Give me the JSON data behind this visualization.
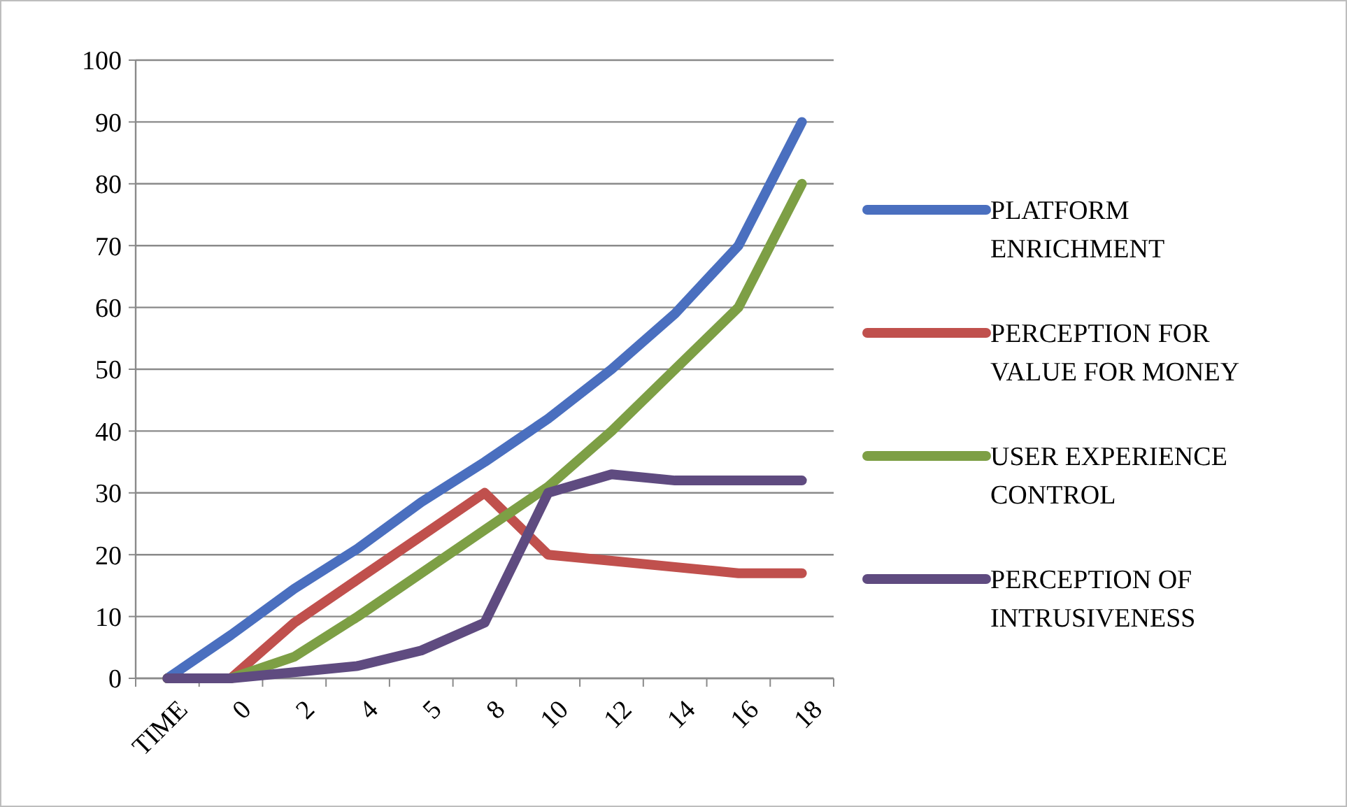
{
  "chart_data": {
    "type": "line",
    "categories": [
      "TIME",
      "0",
      "2",
      "4",
      "5",
      "8",
      "10",
      "12",
      "14",
      "16",
      "18"
    ],
    "series": [
      {
        "name": "PLATFORM ENRICHMENT",
        "color": "#4a6fbf",
        "values": [
          0,
          7,
          14.5,
          21,
          28.5,
          35,
          42,
          50,
          59,
          70,
          90
        ]
      },
      {
        "name": "PERCEPTION FOR VALUE FOR MONEY",
        "color": "#c0504d",
        "values": [
          0,
          0,
          9,
          16,
          23,
          30,
          20,
          19,
          18,
          17,
          17
        ]
      },
      {
        "name": "USER EXPERIENCE CONTROL",
        "color": "#7d9f45",
        "values": [
          0,
          0,
          3.5,
          10,
          17,
          24,
          31,
          40,
          50,
          60,
          80
        ]
      },
      {
        "name": "PERCEPTION OF INTRUSIVENESS",
        "color": "#5f4b80",
        "values": [
          0,
          0,
          1,
          2,
          4.5,
          9,
          30,
          33,
          32,
          32,
          32
        ]
      }
    ],
    "ylim": [
      0,
      100
    ],
    "yticks": [
      0,
      10,
      20,
      30,
      40,
      50,
      60,
      70,
      80,
      90,
      100
    ],
    "grid": "y",
    "legend": "right",
    "marker": "none",
    "line_style": "solid"
  }
}
